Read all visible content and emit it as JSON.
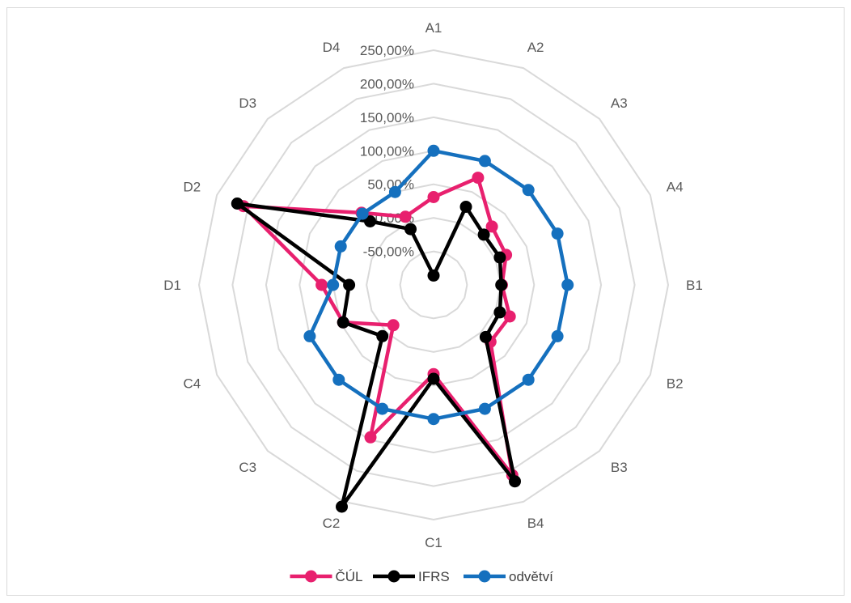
{
  "chart_data": {
    "type": "radar",
    "categories": [
      "A1",
      "A2",
      "A3",
      "A4",
      "B1",
      "B2",
      "B3",
      "B4",
      "C1",
      "C2",
      "C3",
      "C4",
      "D1",
      "D2",
      "D3",
      "D4"
    ],
    "rlim": [
      -100,
      250
    ],
    "ticks": [
      -100,
      -50,
      0,
      50,
      100,
      150,
      200,
      250
    ],
    "tick_labels": [
      "",
      "-50,00%",
      "0,00%",
      "50,00%",
      "100,00%",
      "150,00%",
      "200,00%",
      "250,00%"
    ],
    "grid": true,
    "legend_position": "bottom",
    "series": [
      {
        "name": "ČÚL",
        "color": "#e8206e",
        "values": [
          31,
          73,
          23,
          17,
          2,
          23,
          20,
          207,
          33,
          146,
          -15,
          46,
          67,
          207,
          52,
          10
        ]
      },
      {
        "name": "IFRS",
        "color": "#000000",
        "values": [
          -86,
          26,
          6,
          7,
          1,
          7,
          10,
          217,
          40,
          258,
          8,
          46,
          26,
          217,
          34,
          -10
        ]
      },
      {
        "name": "odvětví",
        "color": "#1570be",
        "values": [
          100,
          100,
          100,
          100,
          100,
          100,
          100,
          100,
          100,
          100,
          100,
          100,
          50,
          50,
          50,
          50
        ]
      }
    ]
  }
}
